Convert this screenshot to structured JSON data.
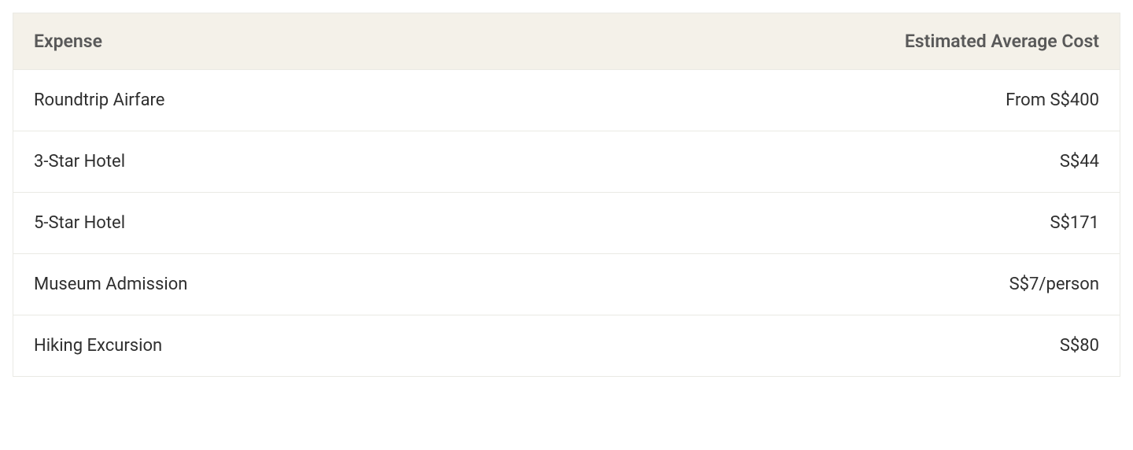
{
  "table": {
    "header_bg": "#f4f1e9",
    "border_color": "#eaeae4",
    "row_bg": "#ffffff",
    "header_text_color": "#595959",
    "cell_text_color": "#2f2f2f",
    "header_font_size": 23,
    "cell_font_size": 22,
    "columns": [
      {
        "label": "Expense",
        "align": "left"
      },
      {
        "label": "Estimated Average Cost",
        "align": "right"
      }
    ],
    "rows": [
      {
        "expense": "Roundtrip Airfare",
        "cost": "From S$400"
      },
      {
        "expense": "3-Star Hotel",
        "cost": "S$44"
      },
      {
        "expense": "5-Star Hotel",
        "cost": "S$171"
      },
      {
        "expense": "Museum Admission",
        "cost": "S$7/person"
      },
      {
        "expense": "Hiking Excursion",
        "cost": "S$80"
      }
    ]
  }
}
